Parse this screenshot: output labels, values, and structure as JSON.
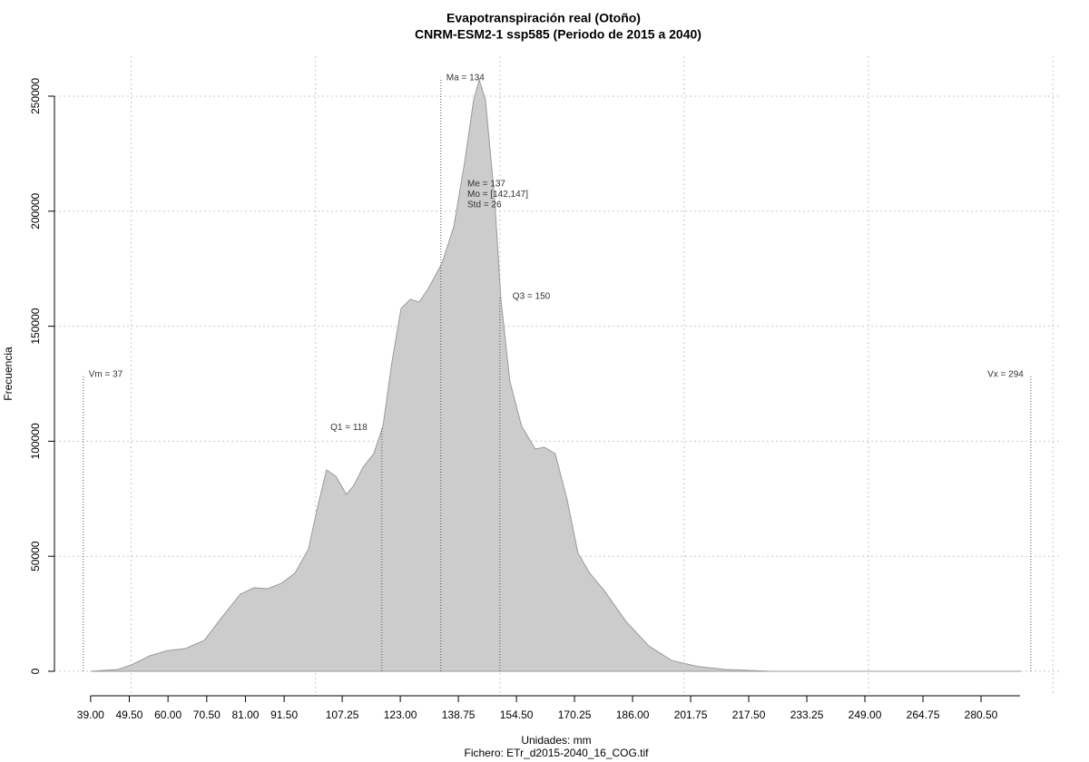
{
  "chart_data": {
    "type": "area",
    "title": "Evapotranspiración real (Otoño)",
    "subtitle": "CNRM-ESM2-1 ssp585 (Periodo de 2015 a 2040)",
    "x_label": "Unidades: mm",
    "caption": "Fichero: ETr_d2015-2040_16_COG.tif",
    "y_label": "Frecuencia",
    "color": "#cccccc",
    "line_color": "#9a9a9a",
    "grid": true,
    "x": [
      39,
      46.4,
      50.1,
      55,
      59.9,
      64.8,
      69.8,
      74.7,
      79.6,
      83.3,
      87,
      90.7,
      94.4,
      98.1,
      100.5,
      103,
      105.5,
      108.4,
      110.4,
      112.9,
      115.8,
      118.3,
      120.7,
      123.2,
      125.7,
      128.1,
      130.6,
      134.3,
      137.5,
      140.4,
      142.9,
      144.4,
      146.1,
      148.6,
      150.3,
      152.7,
      155.9,
      159.6,
      162.1,
      165,
      168.2,
      171.2,
      174.4,
      178.1,
      184.2,
      190.4,
      196.6,
      203.9,
      211.3,
      223.6,
      291.3
    ],
    "values": [
      0,
      800,
      2800,
      6700,
      9000,
      9900,
      13400,
      23700,
      33500,
      36300,
      35900,
      38200,
      42600,
      53200,
      71000,
      87500,
      84800,
      76900,
      80800,
      88700,
      94600,
      106500,
      134100,
      157700,
      161700,
      160500,
      166400,
      177400,
      193200,
      220800,
      248400,
      257100,
      248400,
      205000,
      161700,
      126200,
      106500,
      96600,
      97400,
      94600,
      74900,
      51300,
      42600,
      35500,
      21700,
      11000,
      4700,
      2000,
      800,
      0,
      0
    ],
    "xlim": [
      29.2,
      302.4
    ],
    "ylim": [
      -9860,
      267350
    ],
    "xticks": [
      {
        "value": 39,
        "label": "39.00"
      },
      {
        "value": 49.5,
        "label": "49.50"
      },
      {
        "value": 60,
        "label": "60.00"
      },
      {
        "value": 70.5,
        "label": "70.50"
      },
      {
        "value": 81,
        "label": "81.00"
      },
      {
        "value": 91.5,
        "label": "91.50"
      },
      {
        "value": 107.25,
        "label": "107.25"
      },
      {
        "value": 123,
        "label": "123.00"
      },
      {
        "value": 138.75,
        "label": "138.75"
      },
      {
        "value": 154.5,
        "label": "154.50"
      },
      {
        "value": 170.25,
        "label": "170.25"
      },
      {
        "value": 186,
        "label": "186.00"
      },
      {
        "value": 201.75,
        "label": "201.75"
      },
      {
        "value": 217.5,
        "label": "217.50"
      },
      {
        "value": 233.25,
        "label": "233.25"
      },
      {
        "value": 249,
        "label": "249.00"
      },
      {
        "value": 264.75,
        "label": "264.75"
      },
      {
        "value": 280.5,
        "label": "280.50"
      }
    ],
    "xgrid": [
      50,
      100,
      150,
      200,
      250,
      300
    ],
    "yticks": [
      0,
      50000,
      100000,
      150000,
      200000,
      250000
    ],
    "markers": [
      {
        "label": "Vm = 37",
        "value": 37
      },
      {
        "label": "Q1 = 118",
        "value": 118
      },
      {
        "label": "Ma = 134",
        "value": 134
      },
      {
        "label": "Q3 = 150",
        "value": 150
      },
      {
        "label": "Vx = 294",
        "value": 294
      }
    ],
    "stats": [
      "Me = 137",
      "Mo = [142,147]",
      "Std = 26"
    ]
  }
}
